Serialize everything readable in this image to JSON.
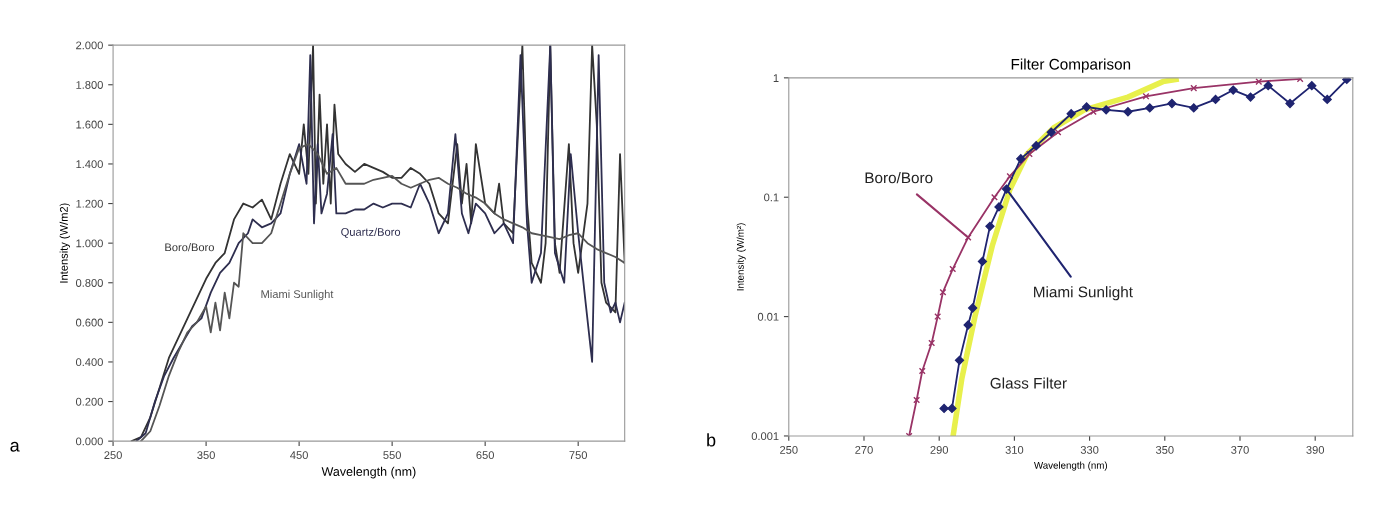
{
  "chart_data": [
    {
      "type": "line",
      "xlabel": "Wavelength (nm)",
      "ylabel": "Intensity (W/m2)",
      "xlim": [
        250,
        800
      ],
      "xticks": [
        250,
        350,
        450,
        550,
        650,
        750
      ],
      "ylim": [
        0,
        2
      ],
      "yticks": [
        {
          "value": 0,
          "label": "0.000"
        },
        {
          "value": 0.2,
          "label": "0.200"
        },
        {
          "value": 0.4,
          "label": "0.400"
        },
        {
          "value": 0.6,
          "label": "0.600"
        },
        {
          "value": 0.8,
          "label": "0.800"
        },
        {
          "value": 1.0,
          "label": "1.000"
        },
        {
          "value": 1.2,
          "label": "1.200"
        },
        {
          "value": 1.4,
          "label": "1.400"
        },
        {
          "value": 1.6,
          "label": "1.600"
        },
        {
          "value": 1.8,
          "label": "1.800"
        },
        {
          "value": 2.0,
          "label": "2.000"
        }
      ],
      "grid": false,
      "legend": false,
      "marker": "none",
      "series": [
        {
          "name": "Boro/Boro",
          "color": "#333333",
          "x": [
            270,
            280,
            290,
            300,
            310,
            320,
            330,
            340,
            350,
            360,
            370,
            380,
            390,
            400,
            410,
            420,
            430,
            440,
            450,
            455,
            460,
            465,
            468,
            472,
            476,
            480,
            484,
            488,
            492,
            500,
            510,
            520,
            530,
            540,
            550,
            560,
            570,
            580,
            590,
            600,
            610,
            620,
            625,
            630,
            635,
            640,
            650,
            660,
            665,
            670,
            680,
            690,
            695,
            700,
            710,
            715,
            720,
            725,
            730,
            740,
            745,
            750,
            760,
            765,
            770,
            775,
            780,
            790,
            795,
            800
          ],
          "values": [
            0,
            0.02,
            0.12,
            0.27,
            0.42,
            0.52,
            0.62,
            0.72,
            0.82,
            0.9,
            0.95,
            1.12,
            1.2,
            1.18,
            1.22,
            1.12,
            1.3,
            1.45,
            1.35,
            1.6,
            1.35,
            2.0,
            1.2,
            1.75,
            1.3,
            1.6,
            1.2,
            1.7,
            1.45,
            1.4,
            1.36,
            1.4,
            1.38,
            1.36,
            1.33,
            1.33,
            1.38,
            1.35,
            1.3,
            1.15,
            1.1,
            1.5,
            1.2,
            1.4,
            1.1,
            1.5,
            1.2,
            1.15,
            1.3,
            1.1,
            1.05,
            2.0,
            1.2,
            0.9,
            0.8,
            1.0,
            2.0,
            1.0,
            0.85,
            1.5,
            1.0,
            0.85,
            1.2,
            2.0,
            1.6,
            0.8,
            0.7,
            0.65,
            1.45,
            0.9
          ]
        },
        {
          "name": "Quartz/Boro",
          "color": "#2e2e4f",
          "x": [
            275,
            285,
            295,
            305,
            315,
            325,
            335,
            345,
            355,
            365,
            375,
            385,
            395,
            400,
            410,
            420,
            430,
            440,
            450,
            458,
            462,
            466,
            470,
            474,
            480,
            486,
            490,
            500,
            510,
            520,
            530,
            540,
            550,
            560,
            570,
            580,
            590,
            600,
            610,
            618,
            625,
            632,
            640,
            650,
            660,
            670,
            680,
            688,
            695,
            700,
            710,
            720,
            725,
            735,
            742,
            750,
            758,
            765,
            772,
            778,
            785,
            790,
            795,
            800
          ],
          "values": [
            0,
            0.04,
            0.2,
            0.33,
            0.42,
            0.5,
            0.58,
            0.62,
            0.75,
            0.85,
            0.9,
            1.0,
            1.05,
            1.12,
            1.08,
            1.1,
            1.15,
            1.35,
            1.5,
            1.3,
            1.95,
            1.1,
            1.5,
            1.15,
            1.25,
            1.55,
            1.15,
            1.15,
            1.17,
            1.17,
            1.2,
            1.18,
            1.2,
            1.2,
            1.18,
            1.3,
            1.2,
            1.05,
            1.15,
            1.55,
            1.15,
            1.05,
            1.2,
            1.15,
            1.05,
            1.1,
            1.0,
            1.95,
            1.1,
            0.8,
            0.95,
            2.0,
            0.95,
            0.8,
            1.45,
            1.05,
            0.7,
            0.4,
            1.95,
            0.8,
            0.65,
            0.7,
            0.6,
            0.7
          ]
        },
        {
          "name": "Miami Sunlight",
          "color": "#555555",
          "x": [
            280,
            290,
            300,
            310,
            320,
            330,
            340,
            350,
            355,
            360,
            365,
            370,
            375,
            380,
            385,
            390,
            400,
            410,
            420,
            430,
            440,
            450,
            460,
            470,
            480,
            490,
            500,
            510,
            520,
            530,
            540,
            550,
            560,
            570,
            580,
            590,
            600,
            610,
            620,
            630,
            640,
            650,
            660,
            670,
            680,
            690,
            700,
            710,
            720,
            730,
            740,
            750,
            760,
            770,
            780,
            790,
            800
          ],
          "values": [
            0,
            0.05,
            0.18,
            0.33,
            0.45,
            0.55,
            0.6,
            0.68,
            0.55,
            0.7,
            0.56,
            0.75,
            0.62,
            0.8,
            0.78,
            1.05,
            1.0,
            1.0,
            1.05,
            1.2,
            1.35,
            1.48,
            1.5,
            1.45,
            1.35,
            1.38,
            1.3,
            1.3,
            1.3,
            1.32,
            1.33,
            1.34,
            1.3,
            1.28,
            1.3,
            1.32,
            1.33,
            1.3,
            1.28,
            1.25,
            1.23,
            1.2,
            1.15,
            1.12,
            1.1,
            1.08,
            1.05,
            1.04,
            1.03,
            1.02,
            1.04,
            1.05,
            1.0,
            0.97,
            0.95,
            0.93,
            0.9
          ]
        }
      ],
      "annotations": [
        "a"
      ]
    },
    {
      "type": "line",
      "title": "Filter Comparison",
      "xlabel": "Wavelength (nm)",
      "ylabel": "Intensity (W/m²)",
      "log": "y",
      "xlim": [
        250,
        400
      ],
      "xticks": [
        250,
        270,
        290,
        310,
        330,
        350,
        370,
        390
      ],
      "ylim": [
        0.001,
        1
      ],
      "yticks": [
        0.001,
        0.01,
        0.1,
        1
      ],
      "grid": false,
      "legend": false,
      "series": [
        {
          "name": "Glass Filter",
          "color": "#e8f04c",
          "marker": "none",
          "x": [
            293.7,
            296,
            299.5,
            304.1,
            308.8,
            313.4,
            320.4,
            328.6,
            340.2,
            349.5,
            353
          ],
          "values": [
            0.001,
            0.003,
            0.01,
            0.039,
            0.116,
            0.23,
            0.38,
            0.54,
            0.69,
            0.93,
            0.97
          ]
        },
        {
          "name": "Boro/Boro",
          "color": "#993366",
          "marker": "cross",
          "x": [
            282,
            284,
            285.5,
            288,
            289.6,
            291,
            293.6,
            297.7,
            304.7,
            308.8,
            314,
            321.6,
            331,
            345,
            357.7,
            375,
            386
          ],
          "values": [
            0.001,
            0.002,
            0.0035,
            0.006,
            0.01,
            0.016,
            0.025,
            0.046,
            0.1,
            0.15,
            0.23,
            0.35,
            0.52,
            0.7,
            0.82,
            0.93,
            0.98
          ]
        },
        {
          "name": "Miami Sunlight",
          "color": "#1f2470",
          "marker": "diamond",
          "x": [
            291.3,
            293.4,
            295.4,
            297.7,
            298.9,
            301.5,
            303.5,
            305.9,
            307.9,
            311.7,
            315.8,
            319.8,
            325.1,
            329.2,
            334.4,
            340.2,
            346,
            351.9,
            357.7,
            363.5,
            368.2,
            372.8,
            377.5,
            383.3,
            389.1,
            393.2,
            398.4
          ],
          "values": [
            0.0017,
            0.0017,
            0.0043,
            0.0085,
            0.0118,
            0.029,
            0.057,
            0.083,
            0.117,
            0.21,
            0.27,
            0.35,
            0.5,
            0.57,
            0.54,
            0.52,
            0.56,
            0.61,
            0.56,
            0.66,
            0.79,
            0.69,
            0.86,
            0.61,
            0.86,
            0.66,
            0.97
          ]
        }
      ],
      "annotations": [
        "b"
      ]
    }
  ]
}
